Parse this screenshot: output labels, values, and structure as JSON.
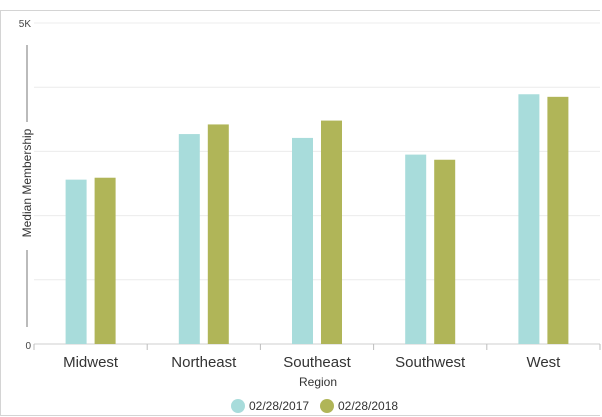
{
  "chart_data": {
    "type": "bar",
    "categories": [
      "Midwest",
      "Northeast",
      "Southeast",
      "Southwest",
      "West"
    ],
    "series": [
      {
        "name": "02/28/2017",
        "color": "#a8dcdb",
        "values": [
          2560,
          3270,
          3210,
          2950,
          3890
        ]
      },
      {
        "name": "02/28/2018",
        "color": "#b0b558",
        "values": [
          2590,
          3420,
          3480,
          2870,
          3850
        ]
      }
    ],
    "title": "",
    "xlabel": "Region",
    "ylabel": "Median Membership",
    "ylim": [
      0,
      5000
    ],
    "y_tick_labels": [
      "0",
      "5K"
    ],
    "grid": true,
    "legend_position": "bottom"
  }
}
